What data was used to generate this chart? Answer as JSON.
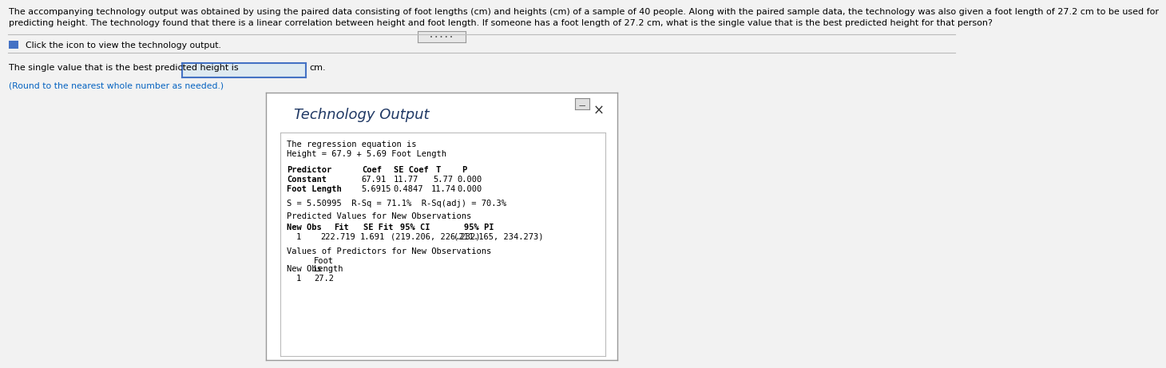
{
  "title_line1": "The accompanying technology output was obtained by using the paired data consisting of foot lengths (cm) and heights (cm) of a sample of 40 people. Along with the paired sample data, the technology was also given a foot length of 27.2 cm to be used for",
  "title_line2": "predicting height. The technology found that there is a linear correlation between height and foot length. If someone has a foot length of 27.2 cm, what is the single value that is the best predicted height for that person?",
  "click_text": "  Click the icon to view the technology output.",
  "answer_prefix": "The single value that is the best predicted height is",
  "answer_suffix": "cm.",
  "answer_note": "(Round to the nearest whole number as needed.)",
  "panel_title": "Technology Output",
  "bg_color": "#f2f2f2",
  "white": "#ffffff",
  "text_color": "#000000",
  "dark_blue": "#1f3864",
  "blue_link": "#0563c1",
  "input_border": "#4472c4",
  "input_bg": "#deeaf1",
  "panel_border": "#999999",
  "inner_border": "#bbbbbb",
  "font_size_body": 8.0,
  "font_size_click": 7.8,
  "font_size_mono": 7.5,
  "font_size_panel_title": 13.0,
  "font_size_note": 7.8
}
